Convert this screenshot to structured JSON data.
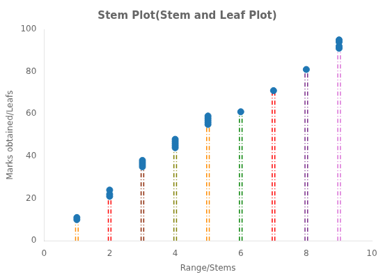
{
  "chart_data": {
    "type": "stem",
    "title": "Stem Plot(Stem and Leaf Plot)",
    "xlabel": "Range/Stems",
    "ylabel": "Marks obtained/Leafs",
    "xlim": [
      0,
      10
    ],
    "ylim": [
      0,
      100
    ],
    "xticks": [
      0,
      2,
      4,
      6,
      8,
      10
    ],
    "yticks": [
      0,
      20,
      40,
      60,
      80,
      100
    ],
    "grid": false,
    "color": "#1f77b4",
    "marker": "circle",
    "line_style": "dashdot",
    "series": [
      {
        "x": 1,
        "values": [
          10,
          11
        ],
        "stem_top": 11,
        "color": "darkorange"
      },
      {
        "x": 2,
        "values": [
          21,
          22,
          24
        ],
        "stem_top": 24,
        "color": "red"
      },
      {
        "x": 3,
        "values": [
          35,
          36,
          37,
          38
        ],
        "stem_top": 38,
        "color": "#8B2500"
      },
      {
        "x": 4,
        "values": [
          44,
          45,
          46,
          47,
          48
        ],
        "stem_top": 48,
        "color": "#808000"
      },
      {
        "x": 5,
        "values": [
          55,
          56,
          57,
          58,
          59
        ],
        "stem_top": 59,
        "color": "darkorange"
      },
      {
        "x": 6,
        "values": [
          61
        ],
        "stem_top": 61,
        "color": "green"
      },
      {
        "x": 7,
        "values": [
          71
        ],
        "stem_top": 71,
        "color": "red"
      },
      {
        "x": 8,
        "values": [
          81
        ],
        "stem_top": 81,
        "color": "#7B2D8B"
      },
      {
        "x": 9,
        "values": [
          91,
          92,
          94,
          95
        ],
        "stem_top": 95,
        "color": "#DA70D6"
      }
    ]
  }
}
